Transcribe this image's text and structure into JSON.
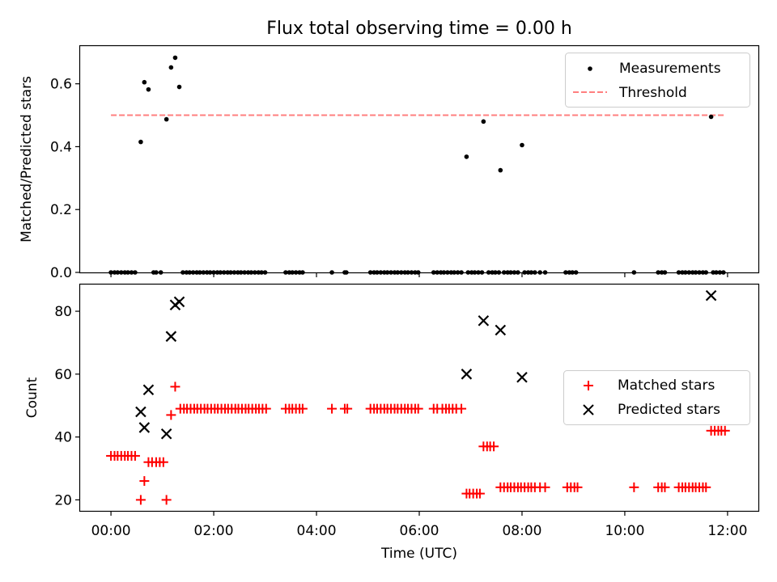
{
  "title": "Flux total observing time = 0.00 h",
  "colors": {
    "measurement": "#000000",
    "threshold": "#ff7f7f",
    "matched": "#ff0000",
    "predicted": "#000000"
  },
  "chart_data": [
    {
      "type": "scatter",
      "ylabel": "Matched/Predicted stars",
      "xlim": [
        -0.6,
        12.6
      ],
      "ylim": [
        0.0,
        0.72
      ],
      "yticks": [
        0.0,
        0.2,
        0.4,
        0.6
      ],
      "ytick_labels": [
        "0.0",
        "0.2",
        "0.4",
        "0.6"
      ],
      "xtick_labels_visible": false,
      "legend": {
        "position": "upper-right",
        "entries": [
          "Measurements",
          "Threshold"
        ]
      },
      "threshold": {
        "name": "Threshold",
        "value": 0.5,
        "x_range": [
          0.0,
          11.95
        ],
        "style": "dashed"
      },
      "series": [
        {
          "name": "Measurements",
          "marker": "dot",
          "points": [
            [
              0.0,
              0
            ],
            [
              0.07,
              0
            ],
            [
              0.13,
              0
            ],
            [
              0.2,
              0
            ],
            [
              0.27,
              0
            ],
            [
              0.33,
              0
            ],
            [
              0.4,
              0
            ],
            [
              0.47,
              0
            ],
            [
              0.58,
              0.415
            ],
            [
              0.65,
              0.605
            ],
            [
              0.73,
              0.582
            ],
            [
              0.83,
              0
            ],
            [
              0.88,
              0
            ],
            [
              0.97,
              0
            ],
            [
              1.08,
              0.487
            ],
            [
              1.17,
              0.652
            ],
            [
              1.25,
              0.683
            ],
            [
              1.33,
              0.59
            ],
            [
              1.4,
              0
            ],
            [
              1.47,
              0
            ],
            [
              1.53,
              0
            ],
            [
              1.6,
              0
            ],
            [
              1.67,
              0
            ],
            [
              1.73,
              0
            ],
            [
              1.8,
              0
            ],
            [
              1.87,
              0
            ],
            [
              1.93,
              0
            ],
            [
              2.0,
              0
            ],
            [
              2.07,
              0
            ],
            [
              2.13,
              0
            ],
            [
              2.2,
              0
            ],
            [
              2.27,
              0
            ],
            [
              2.33,
              0
            ],
            [
              2.4,
              0
            ],
            [
              2.47,
              0
            ],
            [
              2.53,
              0
            ],
            [
              2.6,
              0
            ],
            [
              2.67,
              0
            ],
            [
              2.73,
              0
            ],
            [
              2.8,
              0
            ],
            [
              2.87,
              0
            ],
            [
              2.93,
              0
            ],
            [
              3.0,
              0
            ],
            [
              3.4,
              0
            ],
            [
              3.47,
              0
            ],
            [
              3.53,
              0
            ],
            [
              3.6,
              0
            ],
            [
              3.67,
              0
            ],
            [
              3.73,
              0
            ],
            [
              4.3,
              0
            ],
            [
              4.55,
              0
            ],
            [
              4.58,
              0
            ],
            [
              5.05,
              0
            ],
            [
              5.12,
              0
            ],
            [
              5.18,
              0
            ],
            [
              5.25,
              0
            ],
            [
              5.32,
              0
            ],
            [
              5.38,
              0
            ],
            [
              5.45,
              0
            ],
            [
              5.52,
              0
            ],
            [
              5.58,
              0
            ],
            [
              5.65,
              0
            ],
            [
              5.72,
              0
            ],
            [
              5.78,
              0
            ],
            [
              5.85,
              0
            ],
            [
              5.92,
              0
            ],
            [
              5.98,
              0
            ],
            [
              6.28,
              0
            ],
            [
              6.35,
              0
            ],
            [
              6.42,
              0
            ],
            [
              6.48,
              0
            ],
            [
              6.55,
              0
            ],
            [
              6.62,
              0
            ],
            [
              6.68,
              0
            ],
            [
              6.75,
              0
            ],
            [
              6.82,
              0
            ],
            [
              6.92,
              0.368
            ],
            [
              6.95,
              0
            ],
            [
              7.02,
              0
            ],
            [
              7.08,
              0
            ],
            [
              7.15,
              0
            ],
            [
              7.22,
              0
            ],
            [
              7.25,
              0.48
            ],
            [
              7.35,
              0
            ],
            [
              7.42,
              0
            ],
            [
              7.48,
              0
            ],
            [
              7.55,
              0
            ],
            [
              7.58,
              0.325
            ],
            [
              7.65,
              0
            ],
            [
              7.72,
              0
            ],
            [
              7.78,
              0
            ],
            [
              7.85,
              0
            ],
            [
              7.92,
              0
            ],
            [
              8.0,
              0.405
            ],
            [
              8.05,
              0
            ],
            [
              8.12,
              0
            ],
            [
              8.18,
              0
            ],
            [
              8.25,
              0
            ],
            [
              8.35,
              0
            ],
            [
              8.45,
              0
            ],
            [
              8.85,
              0
            ],
            [
              8.92,
              0
            ],
            [
              8.98,
              0
            ],
            [
              9.05,
              0
            ],
            [
              10.18,
              0
            ],
            [
              10.65,
              0
            ],
            [
              10.72,
              0
            ],
            [
              10.78,
              0
            ],
            [
              11.05,
              0
            ],
            [
              11.12,
              0
            ],
            [
              11.18,
              0
            ],
            [
              11.25,
              0
            ],
            [
              11.32,
              0
            ],
            [
              11.38,
              0
            ],
            [
              11.45,
              0
            ],
            [
              11.52,
              0
            ],
            [
              11.58,
              0
            ],
            [
              11.68,
              0.495
            ],
            [
              11.72,
              0
            ],
            [
              11.78,
              0
            ],
            [
              11.85,
              0
            ],
            [
              11.92,
              0
            ]
          ]
        }
      ]
    },
    {
      "type": "scatter",
      "xlabel": "Time (UTC)",
      "ylabel": "Count",
      "xlim": [
        -0.6,
        12.6
      ],
      "ylim": [
        16.5,
        88.5
      ],
      "xticks": [
        0,
        2,
        4,
        6,
        8,
        10,
        12
      ],
      "xtick_labels": [
        "00:00",
        "02:00",
        "04:00",
        "06:00",
        "08:00",
        "10:00",
        "12:00"
      ],
      "yticks": [
        20,
        40,
        60,
        80
      ],
      "ytick_labels": [
        "20",
        "40",
        "60",
        "80"
      ],
      "legend": {
        "position": "center-right",
        "entries": [
          "Matched stars",
          "Predicted stars"
        ]
      },
      "series": [
        {
          "name": "Matched stars",
          "marker": "plus",
          "points": [
            [
              0.0,
              34
            ],
            [
              0.07,
              34
            ],
            [
              0.13,
              34
            ],
            [
              0.2,
              34
            ],
            [
              0.27,
              34
            ],
            [
              0.33,
              34
            ],
            [
              0.4,
              34
            ],
            [
              0.47,
              34
            ],
            [
              0.58,
              20
            ],
            [
              0.65,
              26
            ],
            [
              0.73,
              32
            ],
            [
              0.8,
              32
            ],
            [
              0.88,
              32
            ],
            [
              0.95,
              32
            ],
            [
              1.02,
              32
            ],
            [
              1.08,
              20
            ],
            [
              1.17,
              47
            ],
            [
              1.25,
              56
            ],
            [
              1.35,
              49
            ],
            [
              1.42,
              49
            ],
            [
              1.48,
              49
            ],
            [
              1.55,
              49
            ],
            [
              1.62,
              49
            ],
            [
              1.68,
              49
            ],
            [
              1.75,
              49
            ],
            [
              1.82,
              49
            ],
            [
              1.88,
              49
            ],
            [
              1.95,
              49
            ],
            [
              2.02,
              49
            ],
            [
              2.08,
              49
            ],
            [
              2.15,
              49
            ],
            [
              2.22,
              49
            ],
            [
              2.28,
              49
            ],
            [
              2.35,
              49
            ],
            [
              2.42,
              49
            ],
            [
              2.48,
              49
            ],
            [
              2.55,
              49
            ],
            [
              2.62,
              49
            ],
            [
              2.68,
              49
            ],
            [
              2.75,
              49
            ],
            [
              2.82,
              49
            ],
            [
              2.88,
              49
            ],
            [
              2.95,
              49
            ],
            [
              3.02,
              49
            ],
            [
              3.4,
              49
            ],
            [
              3.47,
              49
            ],
            [
              3.53,
              49
            ],
            [
              3.6,
              49
            ],
            [
              3.67,
              49
            ],
            [
              3.73,
              49
            ],
            [
              4.3,
              49
            ],
            [
              4.55,
              49
            ],
            [
              4.6,
              49
            ],
            [
              5.05,
              49
            ],
            [
              5.12,
              49
            ],
            [
              5.18,
              49
            ],
            [
              5.25,
              49
            ],
            [
              5.32,
              49
            ],
            [
              5.38,
              49
            ],
            [
              5.45,
              49
            ],
            [
              5.52,
              49
            ],
            [
              5.58,
              49
            ],
            [
              5.65,
              49
            ],
            [
              5.72,
              49
            ],
            [
              5.78,
              49
            ],
            [
              5.85,
              49
            ],
            [
              5.92,
              49
            ],
            [
              5.98,
              49
            ],
            [
              6.28,
              49
            ],
            [
              6.35,
              49
            ],
            [
              6.45,
              49
            ],
            [
              6.52,
              49
            ],
            [
              6.58,
              49
            ],
            [
              6.65,
              49
            ],
            [
              6.72,
              49
            ],
            [
              6.82,
              49
            ],
            [
              6.92,
              22
            ],
            [
              6.98,
              22
            ],
            [
              7.05,
              22
            ],
            [
              7.12,
              22
            ],
            [
              7.18,
              22
            ],
            [
              7.25,
              37
            ],
            [
              7.32,
              37
            ],
            [
              7.38,
              37
            ],
            [
              7.45,
              37
            ],
            [
              7.58,
              24
            ],
            [
              7.65,
              24
            ],
            [
              7.72,
              24
            ],
            [
              7.78,
              24
            ],
            [
              7.85,
              24
            ],
            [
              7.92,
              24
            ],
            [
              7.98,
              24
            ],
            [
              8.05,
              24
            ],
            [
              8.12,
              24
            ],
            [
              8.18,
              24
            ],
            [
              8.25,
              24
            ],
            [
              8.35,
              24
            ],
            [
              8.45,
              24
            ],
            [
              8.88,
              24
            ],
            [
              8.95,
              24
            ],
            [
              9.02,
              24
            ],
            [
              9.08,
              24
            ],
            [
              10.18,
              24
            ],
            [
              10.65,
              24
            ],
            [
              10.72,
              24
            ],
            [
              10.78,
              24
            ],
            [
              11.05,
              24
            ],
            [
              11.12,
              24
            ],
            [
              11.18,
              24
            ],
            [
              11.25,
              24
            ],
            [
              11.32,
              24
            ],
            [
              11.38,
              24
            ],
            [
              11.45,
              24
            ],
            [
              11.52,
              24
            ],
            [
              11.58,
              24
            ],
            [
              11.68,
              42
            ],
            [
              11.75,
              42
            ],
            [
              11.82,
              42
            ],
            [
              11.88,
              42
            ],
            [
              11.95,
              42
            ]
          ]
        },
        {
          "name": "Predicted stars",
          "marker": "x",
          "points": [
            [
              0.58,
              48
            ],
            [
              0.65,
              43
            ],
            [
              0.73,
              55
            ],
            [
              1.08,
              41
            ],
            [
              1.17,
              72
            ],
            [
              1.25,
              82
            ],
            [
              1.33,
              83
            ],
            [
              6.92,
              60
            ],
            [
              7.25,
              77
            ],
            [
              7.58,
              74
            ],
            [
              8.0,
              59
            ],
            [
              11.68,
              85
            ]
          ]
        }
      ]
    }
  ]
}
